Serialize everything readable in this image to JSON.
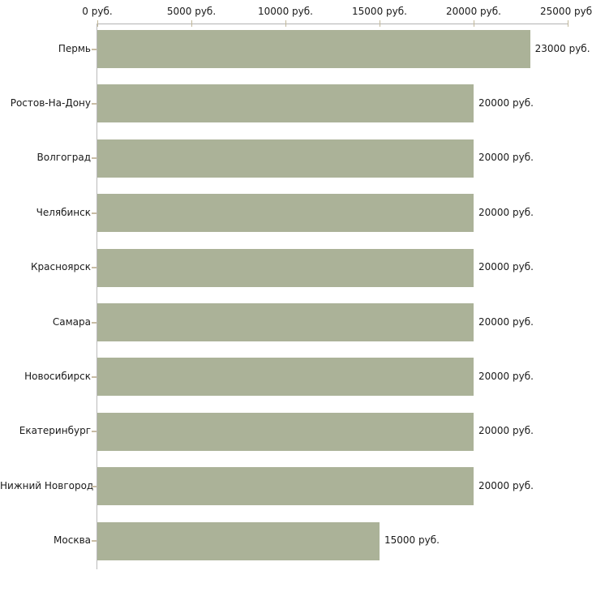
{
  "chart_data": {
    "type": "bar",
    "orientation": "horizontal",
    "title": "",
    "xlabel": "",
    "ylabel": "",
    "unit": "руб.",
    "categories": [
      "Пермь",
      "Ростов-На-Дону",
      "Волгоград",
      "Челябинск",
      "Красноярск",
      "Самара",
      "Новосибирск",
      "Екатеринбург",
      "Нижний Новгород",
      "Москва"
    ],
    "values": [
      23000,
      20000,
      20000,
      20000,
      20000,
      20000,
      20000,
      20000,
      20000,
      15000
    ],
    "value_labels": [
      "23000 руб.",
      "20000 руб.",
      "20000 руб.",
      "20000 руб.",
      "20000 руб.",
      "20000 руб.",
      "20000 руб.",
      "20000 руб.",
      "20000 руб.",
      "15000 руб."
    ],
    "x_ticks": [
      0,
      5000,
      10000,
      15000,
      20000,
      25000
    ],
    "x_tick_labels": [
      "0 руб.",
      "5000 руб.",
      "10000 руб.",
      "15000 руб.",
      "20000 руб.",
      "25000 руб."
    ],
    "xlim": [
      0,
      25000
    ],
    "axis_position": "top",
    "grid": false,
    "legend": "none",
    "colors": {
      "bar": "#abb298",
      "axis_line": "#b3b3b3",
      "y_axis_line": "#bababa",
      "tick_mark": "#c2b89a",
      "category_tick": "#c8bca4",
      "text": "#1a1a1a",
      "background": "#ffffff"
    }
  }
}
